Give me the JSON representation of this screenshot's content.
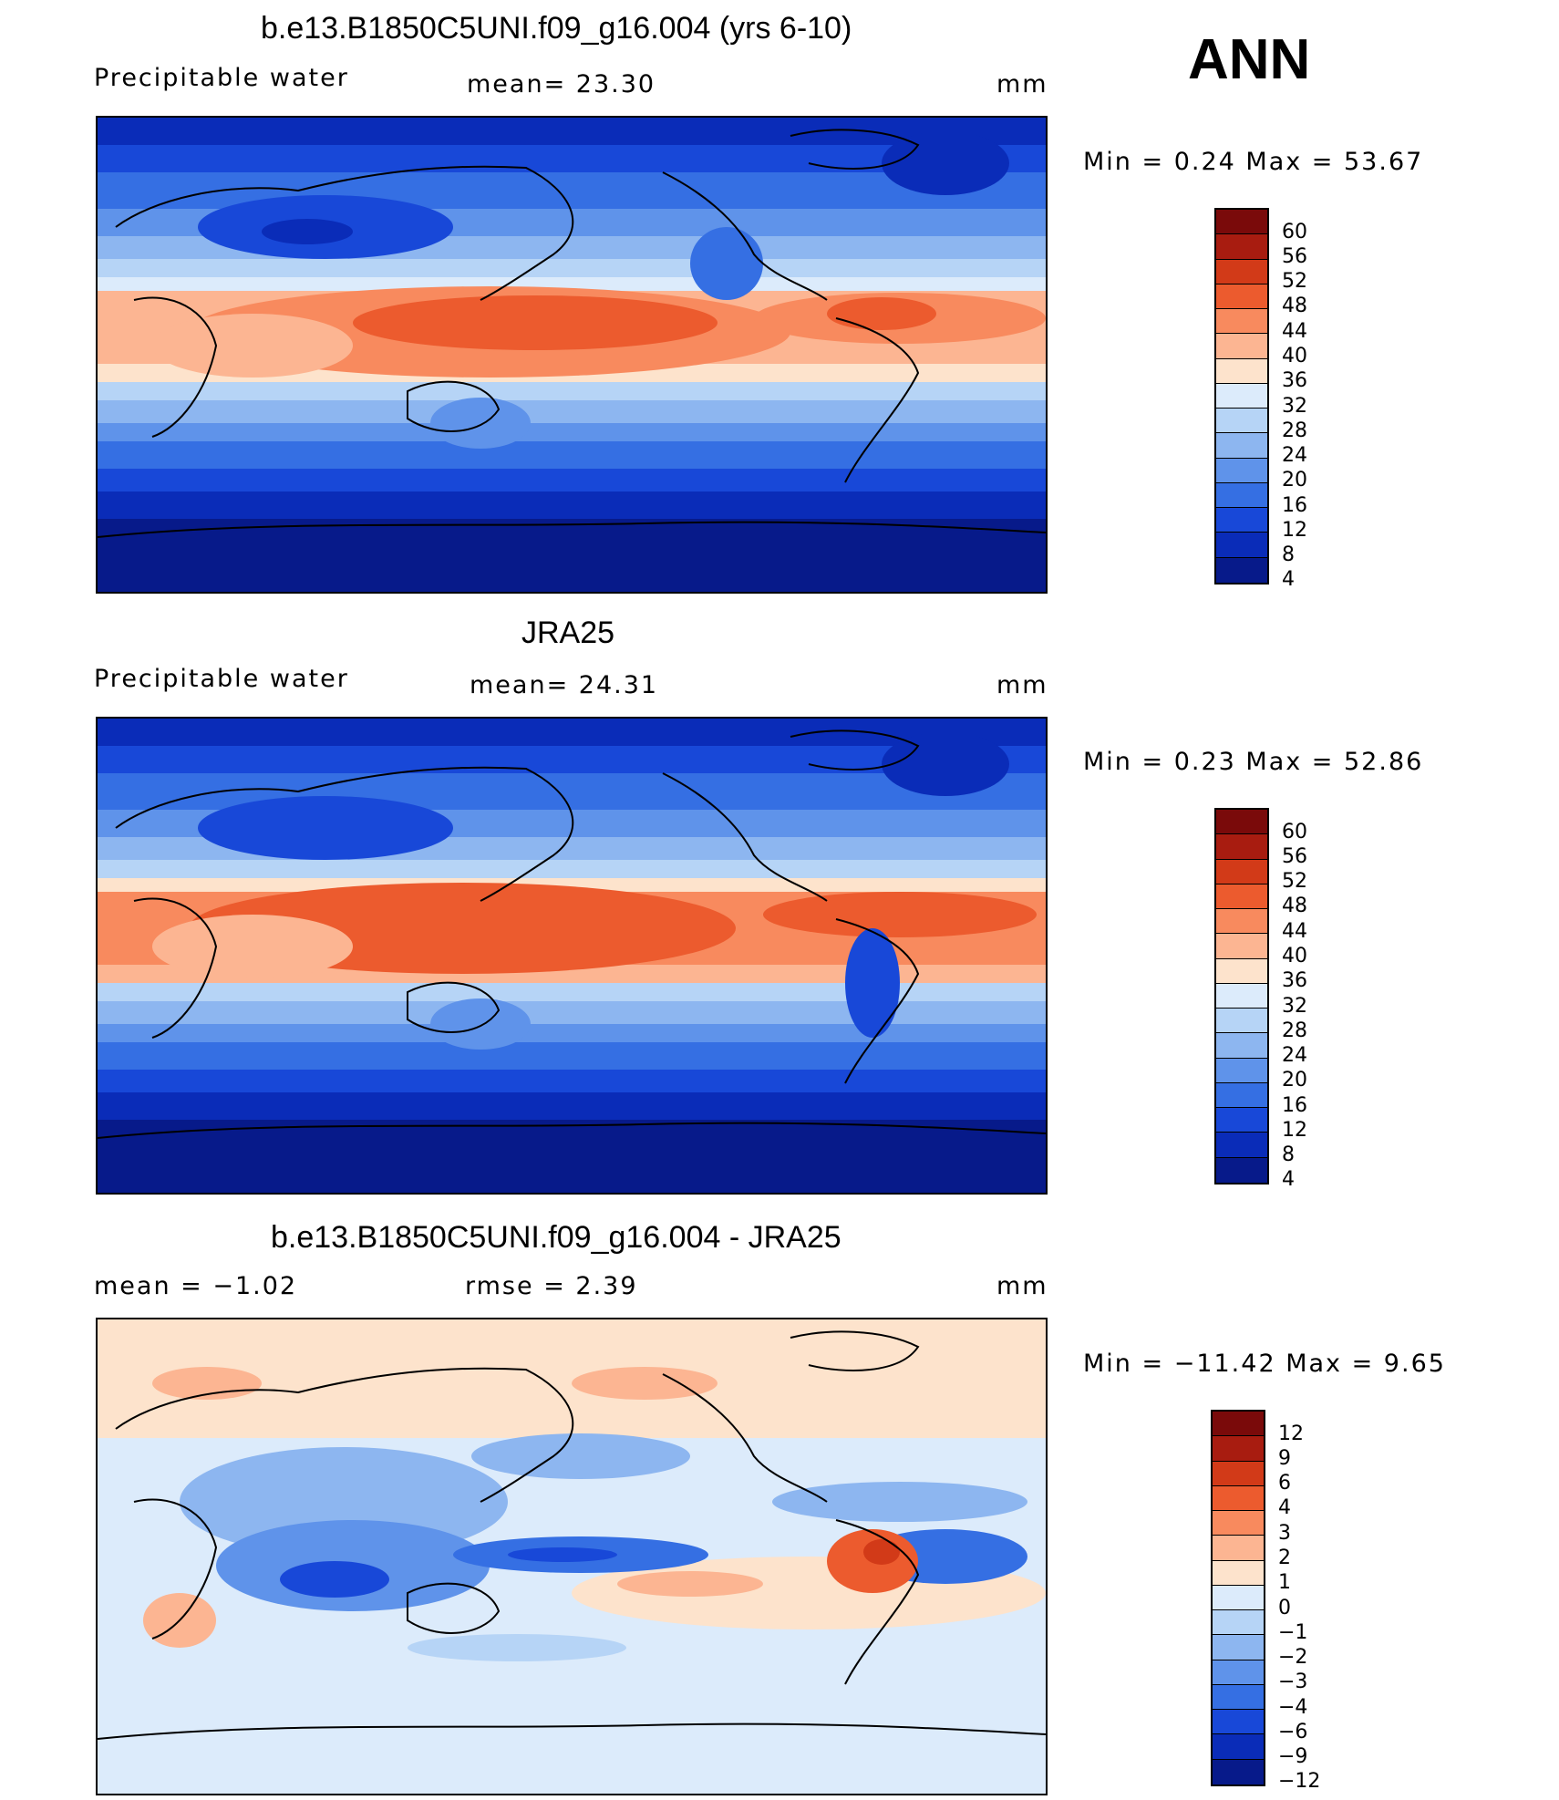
{
  "season": "ANN",
  "panels": [
    {
      "title": "b.e13.B1850C5UNI.f09_g16.004 (yrs 6-10)",
      "left_label": "Precipitable  water",
      "center_label": "mean=   23.30",
      "unit": "mm",
      "minmax": "Min  =     0.24  Max  =     53.67",
      "colorbar": {
        "colors": [
          "#7a0a0a",
          "#a81c10",
          "#d23a18",
          "#ec5b2e",
          "#f88a5e",
          "#fcb592",
          "#fde3cc",
          "#dcebfb",
          "#b6d4f6",
          "#8db6f0",
          "#5f93ea",
          "#356fe3",
          "#1848d8",
          "#0a2cb8",
          "#071a8a"
        ],
        "labels": [
          "60",
          "56",
          "52",
          "48",
          "44",
          "40",
          "36",
          "32",
          "28",
          "24",
          "20",
          "16",
          "12",
          "8",
          "4"
        ]
      }
    },
    {
      "title": "JRA25",
      "left_label": "Precipitable  water",
      "center_label": "mean=   24.31",
      "unit": "mm",
      "minmax": "Min  =     0.23  Max  =     52.86",
      "colorbar": {
        "colors": [
          "#7a0a0a",
          "#a81c10",
          "#d23a18",
          "#ec5b2e",
          "#f88a5e",
          "#fcb592",
          "#fde3cc",
          "#dcebfb",
          "#b6d4f6",
          "#8db6f0",
          "#5f93ea",
          "#356fe3",
          "#1848d8",
          "#0a2cb8",
          "#071a8a"
        ],
        "labels": [
          "60",
          "56",
          "52",
          "48",
          "44",
          "40",
          "36",
          "32",
          "28",
          "24",
          "20",
          "16",
          "12",
          "8",
          "4"
        ]
      }
    },
    {
      "title": "b.e13.B1850C5UNI.f09_g16.004 - JRA25",
      "left_label": "mean  =    −1.02",
      "center_label": "rmse  =     2.39",
      "unit": "mm",
      "minmax": "Min  = −11.42  Max  =      9.65",
      "colorbar": {
        "colors": [
          "#7a0a0a",
          "#a81c10",
          "#d23a18",
          "#ec5b2e",
          "#f88a5e",
          "#fcb592",
          "#fde3cc",
          "#dcebfb",
          "#b6d4f6",
          "#8db6f0",
          "#5f93ea",
          "#356fe3",
          "#1848d8",
          "#0a2cb8",
          "#071a8a"
        ],
        "labels": [
          "12",
          "9",
          "6",
          "4",
          "3",
          "2",
          "1",
          "0",
          "−1",
          "−2",
          "−3",
          "−4",
          "−6",
          "−9",
          "−12"
        ]
      }
    }
  ]
}
